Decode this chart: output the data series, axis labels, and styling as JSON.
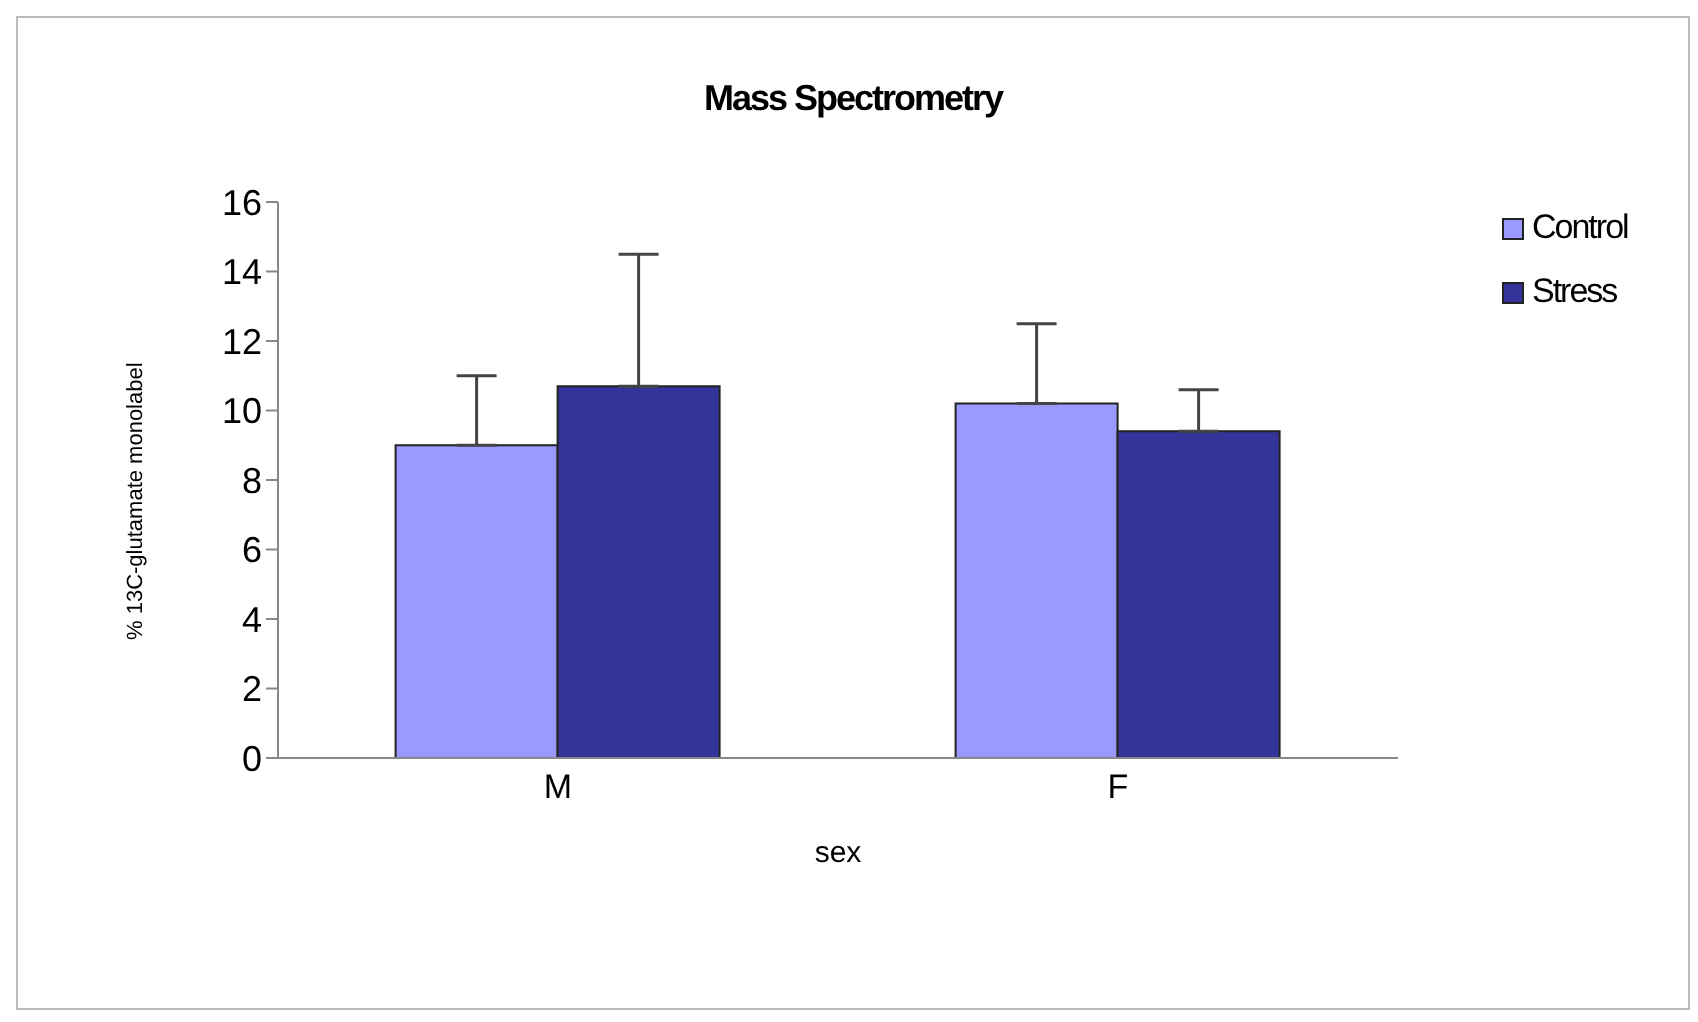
{
  "chart_data": {
    "type": "bar",
    "title": "Mass Spectrometry",
    "xlabel": "sex",
    "ylabel": "% 13C-glutamate monolabel",
    "categories": [
      "M",
      "F"
    ],
    "series": [
      {
        "name": "Control",
        "color": "#9999ff",
        "values": [
          9.0,
          10.2
        ],
        "errors": [
          [
            9.0,
            11.0
          ],
          [
            10.2,
            12.5
          ]
        ]
      },
      {
        "name": "Stress",
        "color": "#333399",
        "values": [
          10.7,
          9.4
        ],
        "errors": [
          [
            10.7,
            14.5
          ],
          [
            9.4,
            10.6
          ]
        ]
      }
    ],
    "ylim": [
      0,
      16
    ],
    "yticks": [
      0,
      2,
      4,
      6,
      8,
      10,
      12,
      14,
      16
    ],
    "grid": false,
    "legend": "top right"
  }
}
